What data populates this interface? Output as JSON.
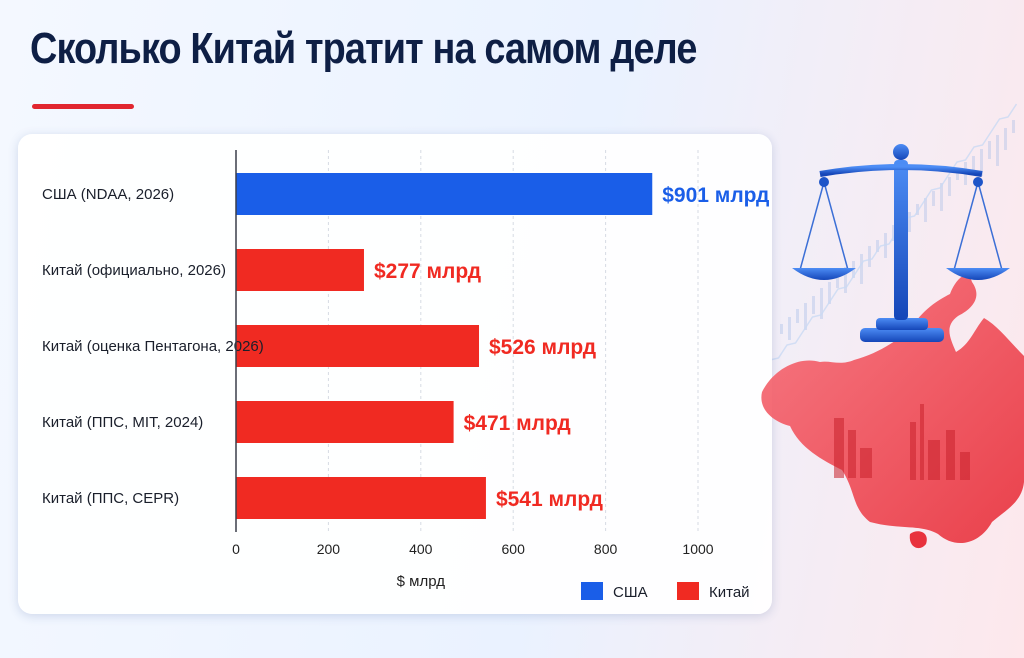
{
  "title": "Сколько Китай тратит на самом деле",
  "colors": {
    "usa": "#1a5ee8",
    "china": "#f02a22",
    "title": "#0e1f45",
    "accent": "#e1262f"
  },
  "chart_data": {
    "type": "bar",
    "orientation": "horizontal",
    "categories": [
      "США (NDAA, 2026)",
      "Китай (официально, 2026)",
      "Китай (оценка Пентагона, 2026)",
      "Китай (ППС, MIT, 2024)",
      "Китай (ППС, CEPR)"
    ],
    "values": [
      901,
      277,
      526,
      471,
      541
    ],
    "series_of": [
      "США",
      "Китай",
      "Китай",
      "Китай",
      "Китай"
    ],
    "data_labels": [
      "$901 млрд",
      "$277 млрд",
      "$526 млрд",
      "$471 млрд",
      "$541 млрд"
    ],
    "xlabel": "$ млрд",
    "xlim": [
      0,
      1000
    ],
    "xticks": [
      0,
      200,
      400,
      600,
      800,
      1000
    ],
    "grid": "vertical, dashed",
    "legend": {
      "position": "bottom-right",
      "entries": [
        {
          "name": "США",
          "color": "#1a5ee8"
        },
        {
          "name": "Китай",
          "color": "#f02a22"
        }
      ]
    }
  },
  "decor": {
    "icons": [
      "balance-scale-icon",
      "china-map-icon",
      "city-skyline-icon"
    ]
  }
}
